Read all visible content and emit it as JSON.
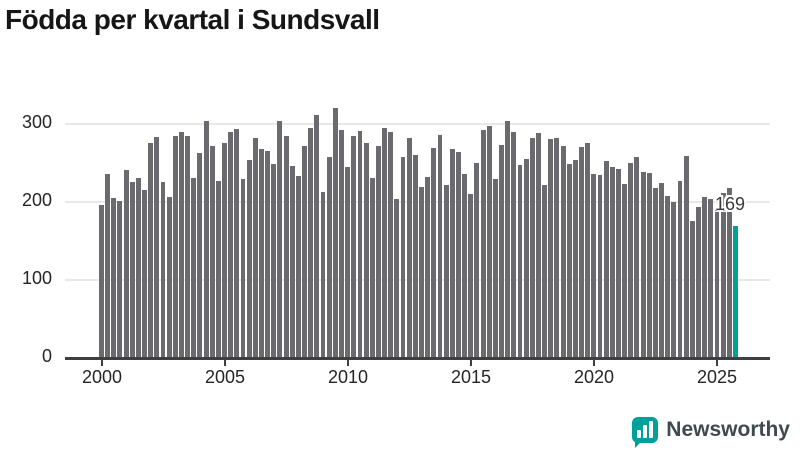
{
  "title": "Födda per kvartal i Sundsvall",
  "y_axis": {
    "ticks": [
      "0",
      "100",
      "200",
      "300"
    ]
  },
  "x_axis": {
    "ticks": [
      "2000",
      "2005",
      "2010",
      "2015",
      "2020",
      "2025"
    ]
  },
  "annotation": {
    "last_value_label": "169"
  },
  "branding": {
    "name": "Newsworthy",
    "logo_color": "#00a19a",
    "icon": "bar-chart-speech-bubble-icon"
  },
  "chart_data": {
    "type": "bar",
    "title": "Födda per kvartal i Sundsvall",
    "xlabel": "",
    "ylabel": "",
    "x_unit": "quarter",
    "grid": "horizontal",
    "legend_position": "none",
    "ylim": [
      0,
      330
    ],
    "yticks": [
      0,
      100,
      200,
      300
    ],
    "xticks": [
      "2000",
      "2005",
      "2010",
      "2015",
      "2020",
      "2025"
    ],
    "bar_color": "#6a6a6f",
    "highlight": {
      "index": 103,
      "category": "2025 Q4",
      "value": 169,
      "label": "169",
      "color": "#00a19a"
    },
    "categories": [
      "2000 Q1",
      "2000 Q2",
      "2000 Q3",
      "2000 Q4",
      "2001 Q1",
      "2001 Q2",
      "2001 Q3",
      "2001 Q4",
      "2002 Q1",
      "2002 Q2",
      "2002 Q3",
      "2002 Q4",
      "2003 Q1",
      "2003 Q2",
      "2003 Q3",
      "2003 Q4",
      "2004 Q1",
      "2004 Q2",
      "2004 Q3",
      "2004 Q4",
      "2005 Q1",
      "2005 Q2",
      "2005 Q3",
      "2005 Q4",
      "2006 Q1",
      "2006 Q2",
      "2006 Q3",
      "2006 Q4",
      "2007 Q1",
      "2007 Q2",
      "2007 Q3",
      "2007 Q4",
      "2008 Q1",
      "2008 Q2",
      "2008 Q3",
      "2008 Q4",
      "2009 Q1",
      "2009 Q2",
      "2009 Q3",
      "2009 Q4",
      "2010 Q1",
      "2010 Q2",
      "2010 Q3",
      "2010 Q4",
      "2011 Q1",
      "2011 Q2",
      "2011 Q3",
      "2011 Q4",
      "2012 Q1",
      "2012 Q2",
      "2012 Q3",
      "2012 Q4",
      "2013 Q1",
      "2013 Q2",
      "2013 Q3",
      "2013 Q4",
      "2014 Q1",
      "2014 Q2",
      "2014 Q3",
      "2014 Q4",
      "2015 Q1",
      "2015 Q2",
      "2015 Q3",
      "2015 Q4",
      "2016 Q1",
      "2016 Q2",
      "2016 Q3",
      "2016 Q4",
      "2017 Q1",
      "2017 Q2",
      "2017 Q3",
      "2017 Q4",
      "2018 Q1",
      "2018 Q2",
      "2018 Q3",
      "2018 Q4",
      "2019 Q1",
      "2019 Q2",
      "2019 Q3",
      "2019 Q4",
      "2020 Q1",
      "2020 Q2",
      "2020 Q3",
      "2020 Q4",
      "2021 Q1",
      "2021 Q2",
      "2021 Q3",
      "2021 Q4",
      "2022 Q1",
      "2022 Q2",
      "2022 Q3",
      "2022 Q4",
      "2023 Q1",
      "2023 Q2",
      "2023 Q3",
      "2023 Q4",
      "2024 Q1",
      "2024 Q2",
      "2024 Q3",
      "2024 Q4",
      "2025 Q1",
      "2025 Q2",
      "2025 Q3",
      "2025 Q4"
    ],
    "values": [
      196,
      236,
      205,
      201,
      241,
      226,
      230,
      215,
      276,
      283,
      225,
      206,
      284,
      290,
      285,
      231,
      263,
      303,
      271,
      227,
      275,
      289,
      293,
      229,
      254,
      282,
      268,
      265,
      248,
      304,
      285,
      246,
      233,
      271,
      294,
      311,
      213,
      258,
      320,
      292,
      245,
      285,
      291,
      276,
      230,
      272,
      294,
      289,
      204,
      257,
      282,
      260,
      219,
      232,
      269,
      286,
      222,
      268,
      264,
      236,
      210,
      250,
      292,
      297,
      229,
      273,
      304,
      289,
      247,
      255,
      282,
      288,
      221,
      280,
      282,
      272,
      248,
      253,
      270,
      276,
      236,
      234,
      252,
      245,
      242,
      223,
      250,
      258,
      238,
      237,
      218,
      224,
      208,
      200,
      227,
      259,
      176,
      194,
      206,
      204,
      191,
      211,
      218,
      169
    ]
  }
}
